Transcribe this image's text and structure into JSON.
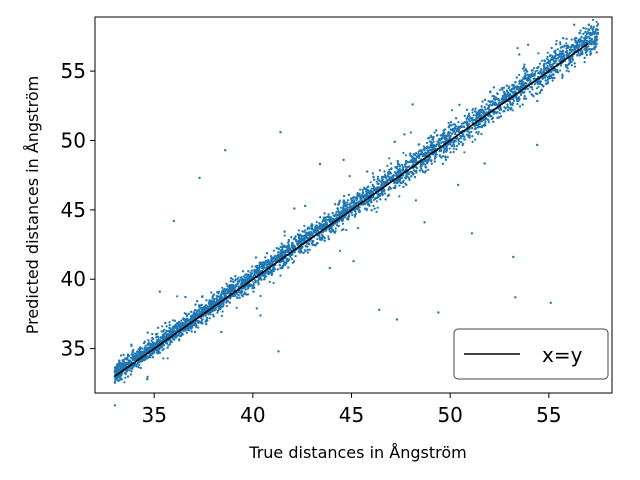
{
  "chart_data": {
    "type": "scatter",
    "xlabel": "True distances in Ångström",
    "ylabel": "Predicted distances in Ångström",
    "xlim": [
      32.0,
      58.2
    ],
    "ylim": [
      31.8,
      58.9
    ],
    "xticks": [
      35,
      40,
      45,
      50,
      55
    ],
    "yticks": [
      35,
      40,
      45,
      50,
      55
    ],
    "grid": false,
    "legend": {
      "position": "bottom-right",
      "entries": [
        "x=y"
      ]
    },
    "series": [
      {
        "kind": "scatter",
        "color": "#1f77b4",
        "x_range": [
          33.0,
          57.5
        ],
        "noise_sd_approx": 0.45,
        "outliers": [
          [
            36.0,
            44.2
          ],
          [
            37.3,
            47.3
          ],
          [
            38.6,
            49.3
          ],
          [
            41.4,
            50.6
          ],
          [
            42.1,
            45.1
          ],
          [
            43.4,
            48.3
          ],
          [
            44.6,
            48.6
          ],
          [
            48.1,
            52.6
          ],
          [
            51.1,
            43.3
          ],
          [
            53.2,
            41.6
          ],
          [
            53.3,
            38.7
          ],
          [
            49.4,
            37.6
          ],
          [
            47.3,
            37.1
          ],
          [
            46.4,
            37.8
          ],
          [
            41.3,
            34.8
          ],
          [
            40.2,
            37.9
          ],
          [
            38.4,
            36.2
          ],
          [
            35.2,
            36.5
          ],
          [
            34.7,
            35.6
          ],
          [
            53.5,
            56.2
          ],
          [
            45.1,
            41.3
          ],
          [
            43.9,
            40.8
          ],
          [
            48.7,
            44.1
          ],
          [
            50.4,
            46.8
          ],
          [
            55.1,
            38.3
          ]
        ]
      },
      {
        "kind": "line",
        "name": "x=y",
        "color": "#000000",
        "x": [
          33.0,
          57.0
        ],
        "y": [
          33.0,
          57.0
        ]
      }
    ]
  }
}
